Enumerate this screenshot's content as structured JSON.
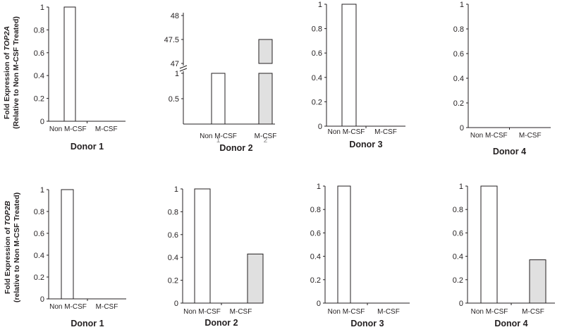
{
  "figure": {
    "rows": [
      {
        "ylabel": {
          "line1_prefix": "Fold Expression of ",
          "line1_gene": "TOP2A",
          "line2": "(Relative to Non M-CSF Treated)"
        }
      },
      {
        "ylabel": {
          "line1_prefix": "Fold Expression of ",
          "line1_gene": "TOP2B",
          "line2": "(relative to Non M-CSF Treated)"
        }
      }
    ]
  },
  "colors": {
    "non_mcsf_fill": "#ffffff",
    "mcsf_fill": "#e0e0e0",
    "stroke": "#231f20"
  },
  "chart_data": [
    {
      "type": "bar",
      "title": "Donor 1",
      "categories": [
        "Non M-CSF",
        "M-CSF"
      ],
      "values": [
        1,
        0
      ],
      "ylim": [
        0,
        1
      ],
      "yticks": [
        "0",
        "0.2",
        "0.4",
        "0.6",
        "0.8",
        "1"
      ]
    },
    {
      "type": "bar",
      "title": "Donor 2",
      "categories": [
        "Non M-CSF",
        "M-CSF"
      ],
      "values": [
        1,
        47.5
      ],
      "broken_axis": {
        "lower": [
          0,
          1
        ],
        "upper": [
          47,
          48
        ]
      },
      "yticks": [
        "0.5",
        "1",
        "47",
        "47.5",
        "48"
      ],
      "category_marks": [
        "1",
        "2"
      ]
    },
    {
      "type": "bar",
      "title": "Donor 3",
      "categories": [
        "Non M-CSF",
        "M-CSF"
      ],
      "values": [
        1,
        0
      ],
      "ylim": [
        0,
        1
      ],
      "yticks": [
        "0",
        "0.2",
        "0.4",
        "0.6",
        "0.8",
        "1"
      ]
    },
    {
      "type": "bar",
      "title": "Donor 4",
      "categories": [
        "Non M-CSF",
        "M-CSF"
      ],
      "values": [
        0,
        0
      ],
      "ylim": [
        0,
        1
      ],
      "yticks": [
        "0",
        "0.2",
        "0.4",
        "0.6",
        "0.8",
        "1"
      ]
    },
    {
      "type": "bar",
      "title": "Donor 1",
      "categories": [
        "Non M-CSF",
        "M-CSF"
      ],
      "values": [
        1,
        0
      ],
      "ylim": [
        0,
        1
      ],
      "yticks": [
        "0",
        "0.2",
        "0.4",
        "0.6",
        "0.8",
        "1"
      ]
    },
    {
      "type": "bar",
      "title": "Donor 2",
      "categories": [
        "Non M-CSF",
        "M-CSF"
      ],
      "values": [
        1,
        0.43
      ],
      "ylim": [
        0,
        1
      ],
      "yticks": [
        "0",
        "0.2",
        "0.4",
        "0.6",
        "0.8",
        "1"
      ]
    },
    {
      "type": "bar",
      "title": "Donor 3",
      "categories": [
        "Non M-CSF",
        "M-CSF"
      ],
      "values": [
        1,
        0
      ],
      "ylim": [
        0,
        1
      ],
      "yticks": [
        "0",
        "0.2",
        "0.4",
        "0.6",
        "0.8",
        "1"
      ]
    },
    {
      "type": "bar",
      "title": "Donor 4",
      "categories": [
        "Non M-CSF",
        "M-CSF"
      ],
      "values": [
        1,
        0.37
      ],
      "ylim": [
        0,
        1
      ],
      "yticks": [
        "0",
        "0.2",
        "0.4",
        "0.6",
        "0.8",
        "1"
      ]
    }
  ]
}
